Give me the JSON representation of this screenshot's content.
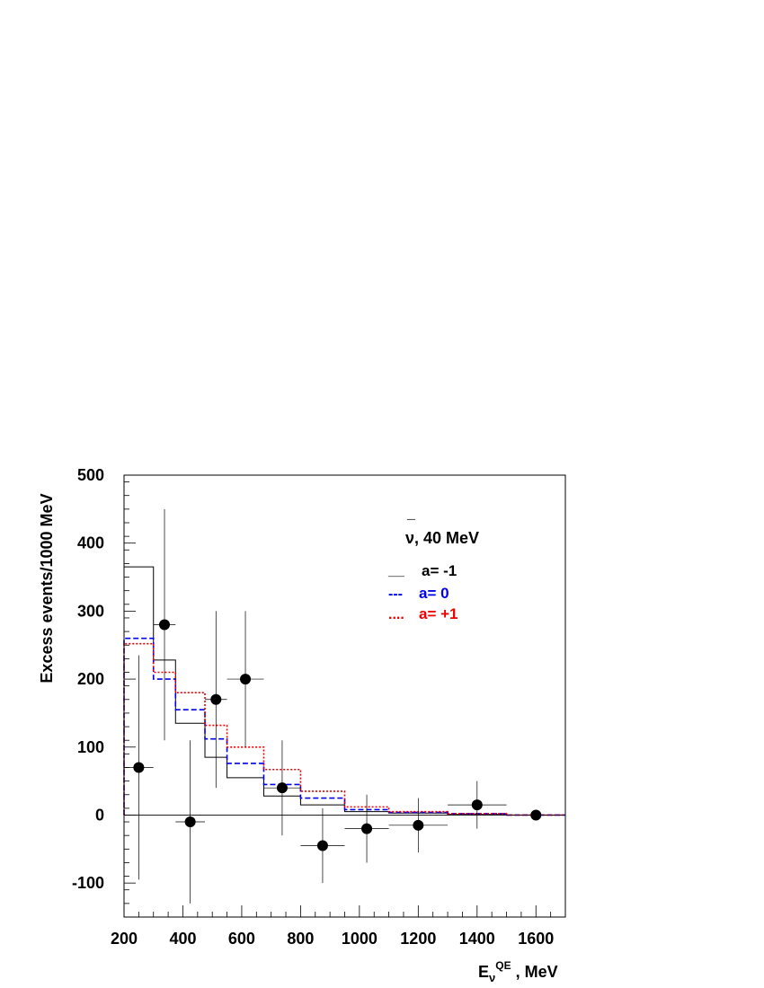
{
  "chart_data": {
    "type": "histogram",
    "title": "",
    "xlabel": {
      "main": "E",
      "subscript": "ν",
      "superscript": "QE",
      "suffix": " , MeV"
    },
    "ylabel": "Excess events/1000 MeV",
    "xlim": [
      200,
      1700
    ],
    "ylim": [
      -150,
      500
    ],
    "xticks": [
      200,
      400,
      600,
      800,
      1000,
      1200,
      1400,
      1600
    ],
    "yticks": [
      -100,
      0,
      100,
      200,
      300,
      400,
      500
    ],
    "grid": false,
    "zero_line": true,
    "annotation": {
      "symbol": "ν",
      "bar": "¯",
      "text": ", 40 MeV"
    },
    "bin_edges": [
      200,
      300,
      375,
      475,
      550,
      675,
      800,
      950,
      1100,
      1300,
      1500,
      1700
    ],
    "series": [
      {
        "name": "a= -1",
        "legend_marker": "__",
        "color": "#000000",
        "style": "solid",
        "values": [
          365,
          228,
          135,
          85,
          55,
          28,
          15,
          5,
          3,
          1,
          0
        ]
      },
      {
        "name": "a= 0",
        "legend_marker": "---",
        "color": "#0000ee",
        "style": "dashed",
        "values": [
          260,
          200,
          155,
          112,
          76,
          45,
          25,
          8,
          4,
          2,
          0
        ]
      },
      {
        "name": "a= +1",
        "legend_marker": "....",
        "color": "#ee0000",
        "style": "dotted",
        "values": [
          252,
          210,
          180,
          132,
          100,
          67,
          35,
          12,
          5,
          2,
          0
        ]
      }
    ],
    "data_points": [
      {
        "x": 250,
        "y": 70,
        "xlo": 200,
        "xhi": 300,
        "ylo": -95,
        "yhi": 235
      },
      {
        "x": 337.5,
        "y": 280,
        "xlo": 300,
        "xhi": 375,
        "ylo": 110,
        "yhi": 450
      },
      {
        "x": 425,
        "y": -10,
        "xlo": 375,
        "xhi": 475,
        "ylo": -130,
        "yhi": 110
      },
      {
        "x": 512.5,
        "y": 170,
        "xlo": 475,
        "xhi": 550,
        "ylo": 40,
        "yhi": 300
      },
      {
        "x": 612.5,
        "y": 200,
        "xlo": 550,
        "xhi": 675,
        "ylo": 100,
        "yhi": 300
      },
      {
        "x": 737.5,
        "y": 40,
        "xlo": 675,
        "xhi": 800,
        "ylo": -30,
        "yhi": 110
      },
      {
        "x": 875,
        "y": -45,
        "xlo": 800,
        "xhi": 950,
        "ylo": -100,
        "yhi": 10
      },
      {
        "x": 1025,
        "y": -20,
        "xlo": 950,
        "xhi": 1100,
        "ylo": -70,
        "yhi": 30
      },
      {
        "x": 1200,
        "y": -15,
        "xlo": 1100,
        "xhi": 1300,
        "ylo": -55,
        "yhi": 25
      },
      {
        "x": 1400,
        "y": 15,
        "xlo": 1300,
        "xhi": 1500,
        "ylo": -20,
        "yhi": 50
      },
      {
        "x": 1600,
        "y": 0,
        "xlo": 1500,
        "xhi": 1700,
        "ylo": -5,
        "yhi": 5
      }
    ]
  }
}
